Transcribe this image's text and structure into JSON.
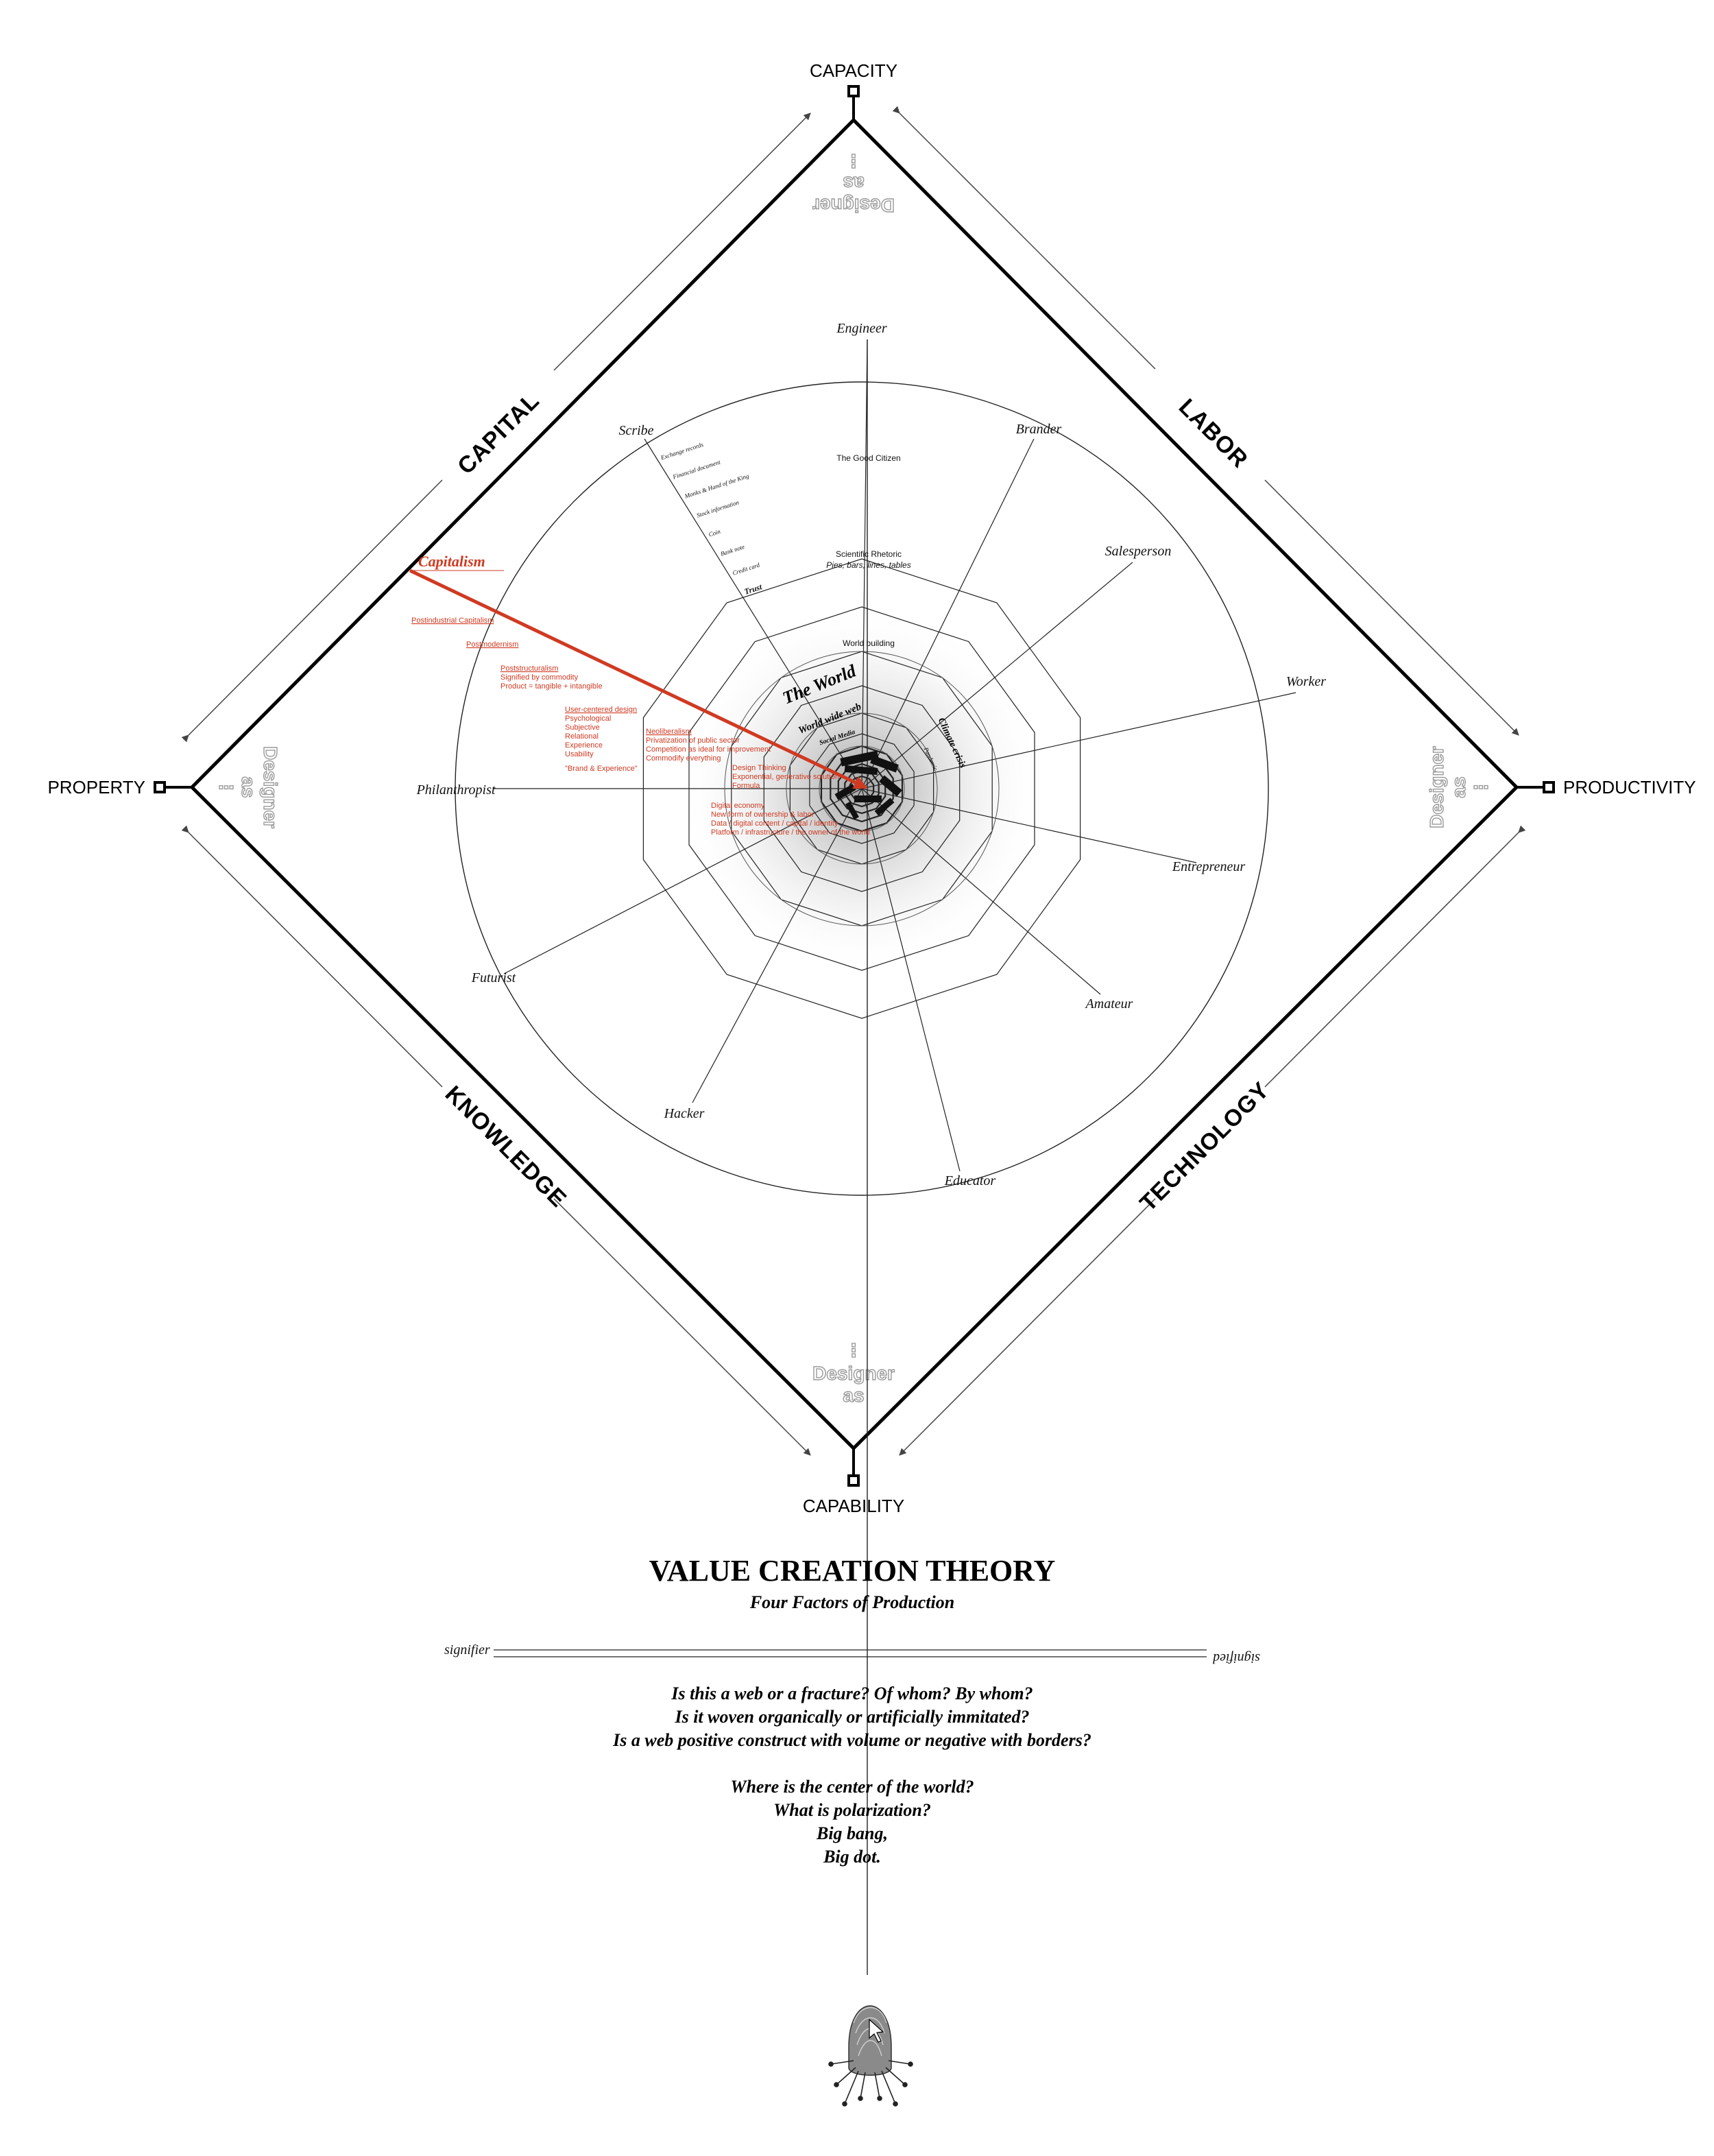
{
  "corners": {
    "capacity": "CAPACITY",
    "productivity": "PRODUCTIVITY",
    "capability": "CAPABILITY",
    "property": "PROPERTY"
  },
  "sides": {
    "capital": "CAPITAL",
    "labor": "LABOR",
    "technology": "TECHNOLOGY",
    "knowledge": "KNOWLEDGE"
  },
  "ghost": {
    "word1": "Designer",
    "word2": "as",
    "dots": "⋮"
  },
  "roles": {
    "engineer": "Engineer",
    "brander": "Brander",
    "salesperson": "Salesperson",
    "worker": "Worker",
    "entrepreneur": "Entrepreneur",
    "amateur": "Amateur",
    "educator": "Educator",
    "hacker": "Hacker",
    "futurist": "Futurist",
    "philanthropist": "Philanthropist",
    "scribe": "Scribe"
  },
  "spoke_labels": {
    "good_citizen": "The Good Citizen",
    "scientific_rhetoric": "Scientific Rhetoric",
    "scientific_rhetoric_sub": "Pies, bars, lines, tables",
    "world_building": "World building",
    "the_world": "The World",
    "world_wide_web": "World wide web",
    "social_media": "Social Media",
    "climate_crisis": "Climate crisis",
    "pandemic": "Pandemic"
  },
  "scribe_items": [
    "Exchange records",
    "Financial document",
    "Monks & Hand of the King",
    "Stock information",
    "Coin",
    "Bank note",
    "Credit card",
    "Trust"
  ],
  "capitalism": {
    "title": "Capitalism",
    "postindustrial": "Postindustrial Capitalism",
    "postmodernism": "Postmodernism",
    "poststructuralism": "Poststructuralism",
    "poststructuralism_lines": [
      "Signified by commodity",
      "Product = tangible + intangible"
    ],
    "ucd": "User-centered design",
    "ucd_lines": [
      "Psychological",
      "Subjective",
      "Relational",
      "Experience",
      "Usability"
    ],
    "brand": "\"Brand & Experience\"",
    "neoliberalism": "Neoliberalism",
    "neoliberalism_lines": [
      "Privatization of public sector",
      "Competition as ideal for improvement",
      "Commodify everything"
    ],
    "design_thinking": [
      "Design Thinking",
      "Exponential, generative solution",
      "Formula"
    ],
    "digital_lines": [
      "Digital economy",
      "New form of ownership & labor",
      "Data / digital content / capital / identity",
      "Platform / infrastructure / the owner of the world"
    ]
  },
  "title": "VALUE CREATION THEORY",
  "subtitle": "Four Factors of Production",
  "signifier": "signifier",
  "signified": "signified",
  "questions": [
    "Is this a web or a fracture? Of whom? By whom?",
    "Is it woven organically or artificially immitated?",
    "Is a web positive construct with volume or negative with borders?",
    "",
    "Where is the center of the world?",
    "What is polarization?",
    "Big bang,",
    "Big dot."
  ]
}
